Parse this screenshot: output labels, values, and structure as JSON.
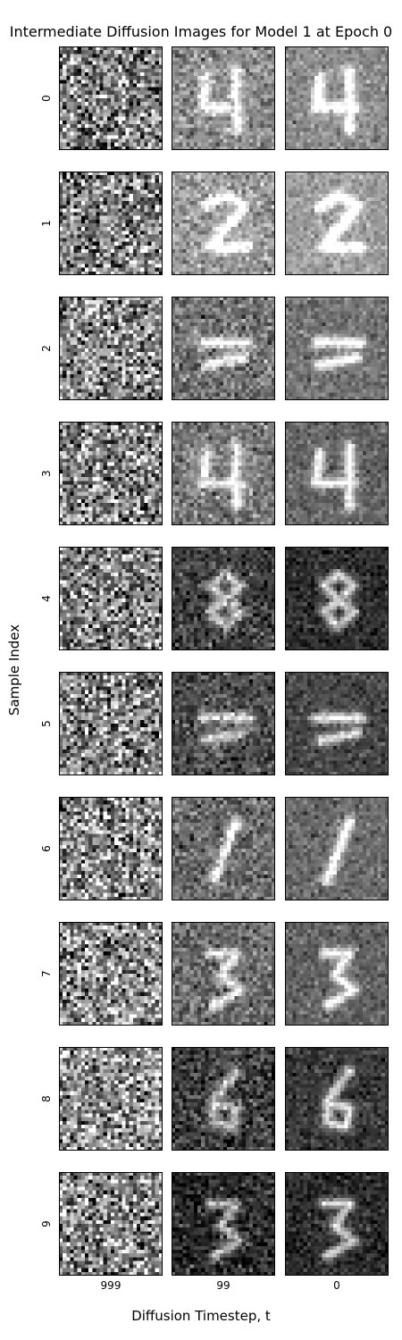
{
  "chart_data": {
    "type": "image-grid",
    "title": "Intermediate Diffusion Images for Model 1 at Epoch 0",
    "xlabel": "Diffusion Timestep, t",
    "ylabel": "Sample Index",
    "columns": [
      "999",
      "99",
      "0"
    ],
    "rows": [
      "0",
      "1",
      "2",
      "3",
      "4",
      "5",
      "6",
      "7",
      "8",
      "9"
    ],
    "image_resolution": [
      28,
      28
    ],
    "colormap": "gray",
    "grid": false,
    "panels": [
      {
        "row": "0",
        "digit_hint": "4",
        "bg_brightness": [
          0.5,
          0.55,
          0.55
        ]
      },
      {
        "row": "1",
        "digit_hint": "2",
        "bg_brightness": [
          0.5,
          0.62,
          0.62
        ]
      },
      {
        "row": "2",
        "digit_hint": "faint",
        "bg_brightness": [
          0.52,
          0.45,
          0.45
        ]
      },
      {
        "row": "3",
        "digit_hint": "4",
        "bg_brightness": [
          0.52,
          0.48,
          0.4
        ]
      },
      {
        "row": "4",
        "digit_hint": "8",
        "bg_brightness": [
          0.52,
          0.25,
          0.18
        ]
      },
      {
        "row": "5",
        "digit_hint": "faint",
        "bg_brightness": [
          0.52,
          0.3,
          0.28
        ]
      },
      {
        "row": "6",
        "digit_hint": "1",
        "bg_brightness": [
          0.55,
          0.42,
          0.42
        ]
      },
      {
        "row": "7",
        "digit_hint": "3",
        "bg_brightness": [
          0.55,
          0.42,
          0.38
        ]
      },
      {
        "row": "8",
        "digit_hint": "6",
        "bg_brightness": [
          0.58,
          0.24,
          0.22
        ]
      },
      {
        "row": "9",
        "digit_hint": "3",
        "bg_brightness": [
          0.52,
          0.16,
          0.16
        ]
      }
    ]
  }
}
